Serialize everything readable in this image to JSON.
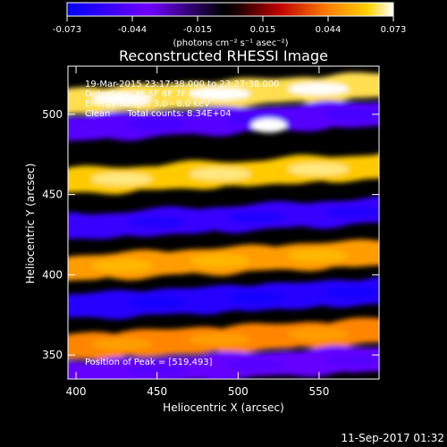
{
  "chart_data": {
    "type": "heatmap",
    "title": "Reconstructed RHESSI Image",
    "xlabel": "Heliocentric X (arcsec)",
    "ylabel": "Heliocentric Y (arcsec)",
    "xlim": [
      395,
      587
    ],
    "ylim": [
      335,
      530
    ],
    "xticks": [
      400,
      450,
      500,
      550
    ],
    "yticks": [
      350,
      400,
      450,
      500
    ],
    "colorbar": {
      "ticks": [
        "-0.073",
        "-0.044",
        "-0.015",
        "0.015",
        "0.044",
        "0.073"
      ],
      "min": -0.073,
      "max": 0.073,
      "unit": "(photons cm⁻² s⁻¹ asec⁻²)"
    },
    "annotations": [
      "19-Mar-2015 23:17:38.000 to 23:27:38.000",
      "Detectors: 3F 5F 6F 7F 8F 9F, Att 0",
      "Energy Range: 3.0 - 6.0 keV",
      "Clean      Total counts: 8.34E+04"
    ],
    "peak_label": "Position of Peak = [519,493]",
    "peak": {
      "x": 519,
      "y": 493
    },
    "grid": false,
    "colormap": "blue-purple-black-red-orange-yellow-white",
    "bands": [
      {
        "y": 508,
        "value": 0.065
      },
      {
        "y": 491,
        "value": -0.045
      },
      {
        "y": 458,
        "value": 0.06
      },
      {
        "y": 430,
        "value": -0.055
      },
      {
        "y": 404,
        "value": 0.05
      },
      {
        "y": 380,
        "value": -0.06
      },
      {
        "y": 355,
        "value": 0.045
      },
      {
        "y": 338,
        "value": -0.04
      }
    ]
  },
  "footer": {
    "timestamp": "11-Sep-2017 01:32"
  }
}
